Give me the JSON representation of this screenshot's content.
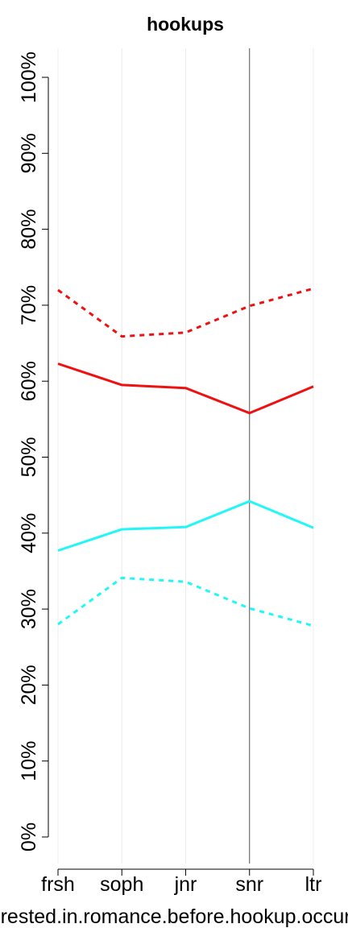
{
  "chart_data": {
    "type": "line",
    "title": "hookups",
    "xlabel": "interested.in.romance.before.hookup.occurred",
    "ylabel": "",
    "categories": [
      "frsh",
      "soph",
      "jnr",
      "snr",
      "ltr"
    ],
    "ylim": [
      0,
      100
    ],
    "yticks": [
      "0%",
      "10%",
      "20%",
      "30%",
      "40%",
      "50%",
      "60%",
      "70%",
      "80%",
      "90%",
      "100%"
    ],
    "ytick_values": [
      0,
      10,
      20,
      30,
      40,
      50,
      60,
      70,
      80,
      90,
      100
    ],
    "reference_line_category": "snr",
    "grid": "vertical",
    "series": [
      {
        "color": "#ee1111",
        "dash": "dotted",
        "values": [
          72.0,
          65.9,
          66.4,
          69.9,
          72.2
        ]
      },
      {
        "color": "#ee1111",
        "dash": "solid",
        "values": [
          62.3,
          59.5,
          59.1,
          55.8,
          59.3
        ]
      },
      {
        "color": "#22f7f7",
        "dash": "solid",
        "values": [
          37.7,
          40.5,
          40.8,
          44.2,
          40.7
        ]
      },
      {
        "color": "#22f7f7",
        "dash": "dotted",
        "values": [
          28.0,
          34.1,
          33.6,
          30.1,
          27.8
        ]
      }
    ]
  }
}
